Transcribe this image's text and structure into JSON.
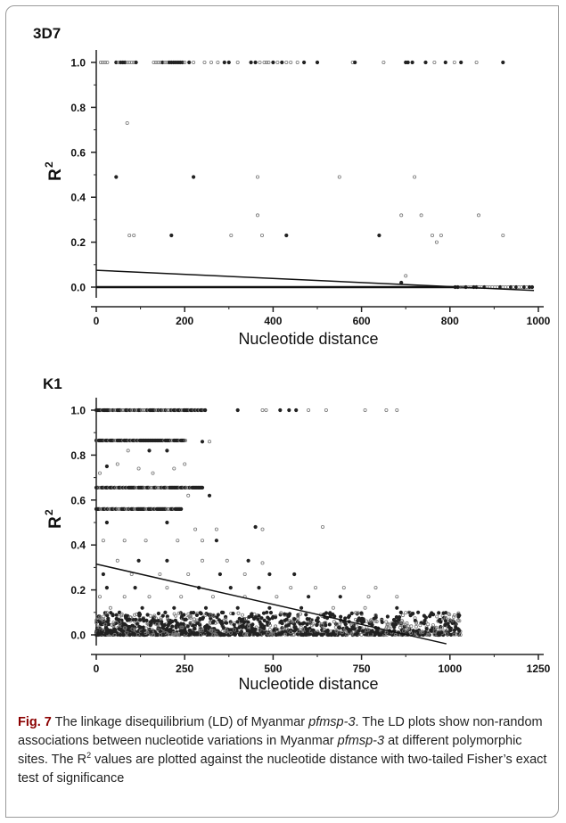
{
  "chart_data": [
    {
      "type": "scatter",
      "panel_label": "3D7",
      "xlabel": "Nucleotide distance",
      "ylabel": "R",
      "ylabel_sup": "2",
      "xlim": [
        0,
        1000
      ],
      "ylim": [
        0,
        1.0
      ],
      "xticks": [
        0,
        200,
        400,
        600,
        800,
        1000
      ],
      "xtick_labels": [
        "0",
        "200",
        "400",
        "600",
        "800",
        "1000"
      ],
      "yticks": [
        0,
        0.2,
        0.4,
        0.6,
        0.8,
        1.0
      ],
      "ytick_labels": [
        "0.0",
        "0.2",
        "0.4",
        "0.6",
        "0.8",
        "1.0"
      ],
      "grid": false,
      "points": [
        [
          10,
          1.0
        ],
        [
          15,
          1.0
        ],
        [
          20,
          1.0
        ],
        [
          25,
          1.0
        ],
        [
          45,
          1.0
        ],
        [
          50,
          1.0
        ],
        [
          55,
          1.0
        ],
        [
          60,
          1.0
        ],
        [
          65,
          1.0
        ],
        [
          70,
          1.0
        ],
        [
          75,
          1.0
        ],
        [
          80,
          1.0
        ],
        [
          85,
          1.0
        ],
        [
          90,
          1.0
        ],
        [
          130,
          1.0
        ],
        [
          135,
          1.0
        ],
        [
          140,
          1.0
        ],
        [
          145,
          1.0
        ],
        [
          150,
          1.0
        ],
        [
          155,
          1.0
        ],
        [
          160,
          1.0
        ],
        [
          165,
          1.0
        ],
        [
          170,
          1.0
        ],
        [
          175,
          1.0
        ],
        [
          180,
          1.0
        ],
        [
          185,
          1.0
        ],
        [
          190,
          1.0
        ],
        [
          195,
          1.0
        ],
        [
          200,
          1.0
        ],
        [
          210,
          1.0
        ],
        [
          220,
          1.0
        ],
        [
          245,
          1.0
        ],
        [
          260,
          1.0
        ],
        [
          275,
          1.0
        ],
        [
          290,
          1.0
        ],
        [
          300,
          1.0
        ],
        [
          320,
          1.0
        ],
        [
          350,
          1.0
        ],
        [
          360,
          1.0
        ],
        [
          370,
          1.0
        ],
        [
          380,
          1.0
        ],
        [
          385,
          1.0
        ],
        [
          390,
          1.0
        ],
        [
          400,
          1.0
        ],
        [
          410,
          1.0
        ],
        [
          420,
          1.0
        ],
        [
          430,
          1.0
        ],
        [
          440,
          1.0
        ],
        [
          455,
          1.0
        ],
        [
          470,
          1.0
        ],
        [
          500,
          1.0
        ],
        [
          580,
          1.0
        ],
        [
          585,
          1.0
        ],
        [
          650,
          1.0
        ],
        [
          700,
          1.0
        ],
        [
          705,
          1.0
        ],
        [
          715,
          1.0
        ],
        [
          745,
          1.0
        ],
        [
          765,
          1.0
        ],
        [
          790,
          1.0
        ],
        [
          810,
          1.0
        ],
        [
          825,
          1.0
        ],
        [
          860,
          1.0
        ],
        [
          920,
          1.0
        ],
        [
          70,
          0.73
        ],
        [
          45,
          0.49
        ],
        [
          220,
          0.49
        ],
        [
          365,
          0.49
        ],
        [
          550,
          0.49
        ],
        [
          720,
          0.49
        ],
        [
          365,
          0.32
        ],
        [
          690,
          0.32
        ],
        [
          735,
          0.32
        ],
        [
          865,
          0.32
        ],
        [
          75,
          0.23
        ],
        [
          85,
          0.23
        ],
        [
          170,
          0.23
        ],
        [
          305,
          0.23
        ],
        [
          375,
          0.23
        ],
        [
          430,
          0.23
        ],
        [
          640,
          0.23
        ],
        [
          760,
          0.23
        ],
        [
          780,
          0.23
        ],
        [
          920,
          0.23
        ],
        [
          770,
          0.2
        ],
        [
          700,
          0.05
        ],
        [
          690,
          0.02
        ]
      ],
      "baseline_points_y": 0,
      "baseline_points_x_range": [
        0,
        990
      ],
      "trendline": {
        "x": [
          0,
          990
        ],
        "y": [
          0.075,
          -0.015
        ]
      }
    },
    {
      "type": "scatter",
      "panel_label": "K1",
      "xlabel": "Nucleotide distance",
      "ylabel": "R",
      "ylabel_sup": "2",
      "xlim": [
        0,
        1250
      ],
      "ylim": [
        0,
        1.0
      ],
      "xticks": [
        0,
        250,
        500,
        750,
        1000,
        1250
      ],
      "xtick_labels": [
        "0",
        "250",
        "500",
        "750",
        "1000",
        "1250"
      ],
      "yticks": [
        0,
        0.2,
        0.4,
        0.6,
        0.8,
        1.0
      ],
      "ytick_labels": [
        "0.0",
        "0.2",
        "0.4",
        "0.6",
        "0.8",
        "1.0"
      ],
      "grid": false,
      "bands": [
        {
          "y": 1.0,
          "x_range": [
            0,
            310
          ]
        },
        {
          "y": 0.865,
          "x_range": [
            0,
            255
          ]
        },
        {
          "y": 0.655,
          "x_range": [
            0,
            300
          ]
        },
        {
          "y": 0.56,
          "x_range": [
            0,
            240
          ]
        }
      ],
      "points": [
        [
          400,
          1.0
        ],
        [
          470,
          1.0
        ],
        [
          480,
          1.0
        ],
        [
          520,
          1.0
        ],
        [
          545,
          1.0
        ],
        [
          565,
          1.0
        ],
        [
          600,
          1.0
        ],
        [
          650,
          1.0
        ],
        [
          760,
          1.0
        ],
        [
          820,
          1.0
        ],
        [
          850,
          1.0
        ],
        [
          10,
          0.72
        ],
        [
          30,
          0.75
        ],
        [
          60,
          0.76
        ],
        [
          120,
          0.74
        ],
        [
          220,
          0.74
        ],
        [
          250,
          0.76
        ],
        [
          160,
          0.72
        ],
        [
          300,
          0.86
        ],
        [
          320,
          0.86
        ],
        [
          90,
          0.82
        ],
        [
          150,
          0.82
        ],
        [
          200,
          0.82
        ],
        [
          320,
          0.62
        ],
        [
          260,
          0.62
        ],
        [
          30,
          0.5
        ],
        [
          200,
          0.5
        ],
        [
          280,
          0.47
        ],
        [
          340,
          0.47
        ],
        [
          450,
          0.48
        ],
        [
          470,
          0.47
        ],
        [
          640,
          0.48
        ],
        [
          20,
          0.42
        ],
        [
          80,
          0.42
        ],
        [
          140,
          0.42
        ],
        [
          230,
          0.42
        ],
        [
          300,
          0.42
        ],
        [
          340,
          0.42
        ],
        [
          60,
          0.33
        ],
        [
          120,
          0.33
        ],
        [
          200,
          0.33
        ],
        [
          300,
          0.33
        ],
        [
          370,
          0.33
        ],
        [
          430,
          0.33
        ],
        [
          470,
          0.32
        ],
        [
          20,
          0.27
        ],
        [
          100,
          0.27
        ],
        [
          180,
          0.27
        ],
        [
          260,
          0.27
        ],
        [
          350,
          0.27
        ],
        [
          420,
          0.27
        ],
        [
          490,
          0.27
        ],
        [
          560,
          0.27
        ],
        [
          30,
          0.21
        ],
        [
          110,
          0.21
        ],
        [
          200,
          0.21
        ],
        [
          290,
          0.21
        ],
        [
          380,
          0.21
        ],
        [
          460,
          0.21
        ],
        [
          550,
          0.21
        ],
        [
          620,
          0.21
        ],
        [
          700,
          0.21
        ],
        [
          790,
          0.21
        ],
        [
          10,
          0.17
        ],
        [
          80,
          0.17
        ],
        [
          150,
          0.17
        ],
        [
          240,
          0.17
        ],
        [
          330,
          0.17
        ],
        [
          420,
          0.17
        ],
        [
          510,
          0.17
        ],
        [
          600,
          0.17
        ],
        [
          690,
          0.17
        ],
        [
          770,
          0.17
        ],
        [
          850,
          0.17
        ],
        [
          40,
          0.12
        ],
        [
          130,
          0.12
        ],
        [
          220,
          0.12
        ],
        [
          310,
          0.12
        ],
        [
          400,
          0.12
        ],
        [
          490,
          0.12
        ],
        [
          580,
          0.12
        ],
        [
          670,
          0.12
        ],
        [
          760,
          0.12
        ],
        [
          850,
          0.12
        ],
        [
          910,
          0.1
        ],
        [
          1000,
          0.03
        ],
        [
          1030,
          0.0
        ]
      ],
      "dense_region": {
        "x_range": [
          0,
          1030
        ],
        "y_range": [
          0,
          0.1
        ]
      },
      "trendline": {
        "x": [
          0,
          990
        ],
        "y": [
          0.315,
          -0.04
        ]
      }
    }
  ],
  "caption": {
    "label": "Fig. 7",
    "text_1": "  The linkage disequilibrium (LD) of Myanmar ",
    "italic_1": "pfmsp-3",
    "text_2": ". The LD plots show non-random associations between nucleotide variations in Myanmar ",
    "italic_2": "pfmsp-3",
    "text_3": " at different polymorphic sites. The R",
    "sup": "2",
    "text_4": " values are plotted against the nucleotide distance with two-tailed Fisher’s exact test of significance"
  }
}
